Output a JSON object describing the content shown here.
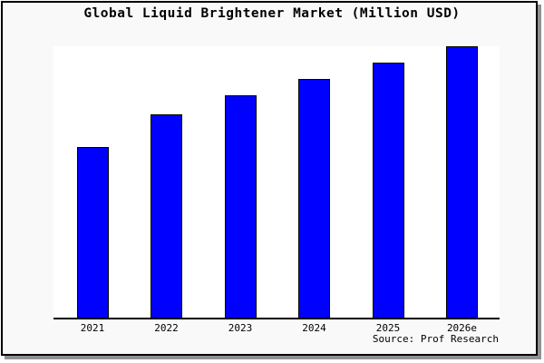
{
  "window": {
    "figure_bg": "#f9f9f9",
    "plot_bg": "#ffffff",
    "frame_border_color": "#000000",
    "frame_shadow_color": "#909090"
  },
  "chart_data": {
    "type": "bar",
    "title": "Global Liquid Brightener Market (Million USD)",
    "categories": [
      "2021",
      "2022",
      "2023",
      "2024",
      "2025",
      "2026e"
    ],
    "values": [
      63,
      75,
      82,
      88,
      94,
      100
    ],
    "values_unit": "relative height, % of tallest bar (no y-axis scale shown)",
    "xlabel": "",
    "ylabel": "",
    "grid": false,
    "legend": "none",
    "bar_color": "#0000ff",
    "bar_border_color": "#000000",
    "axis_color": "#000000",
    "source": "Source: Prof Research"
  }
}
